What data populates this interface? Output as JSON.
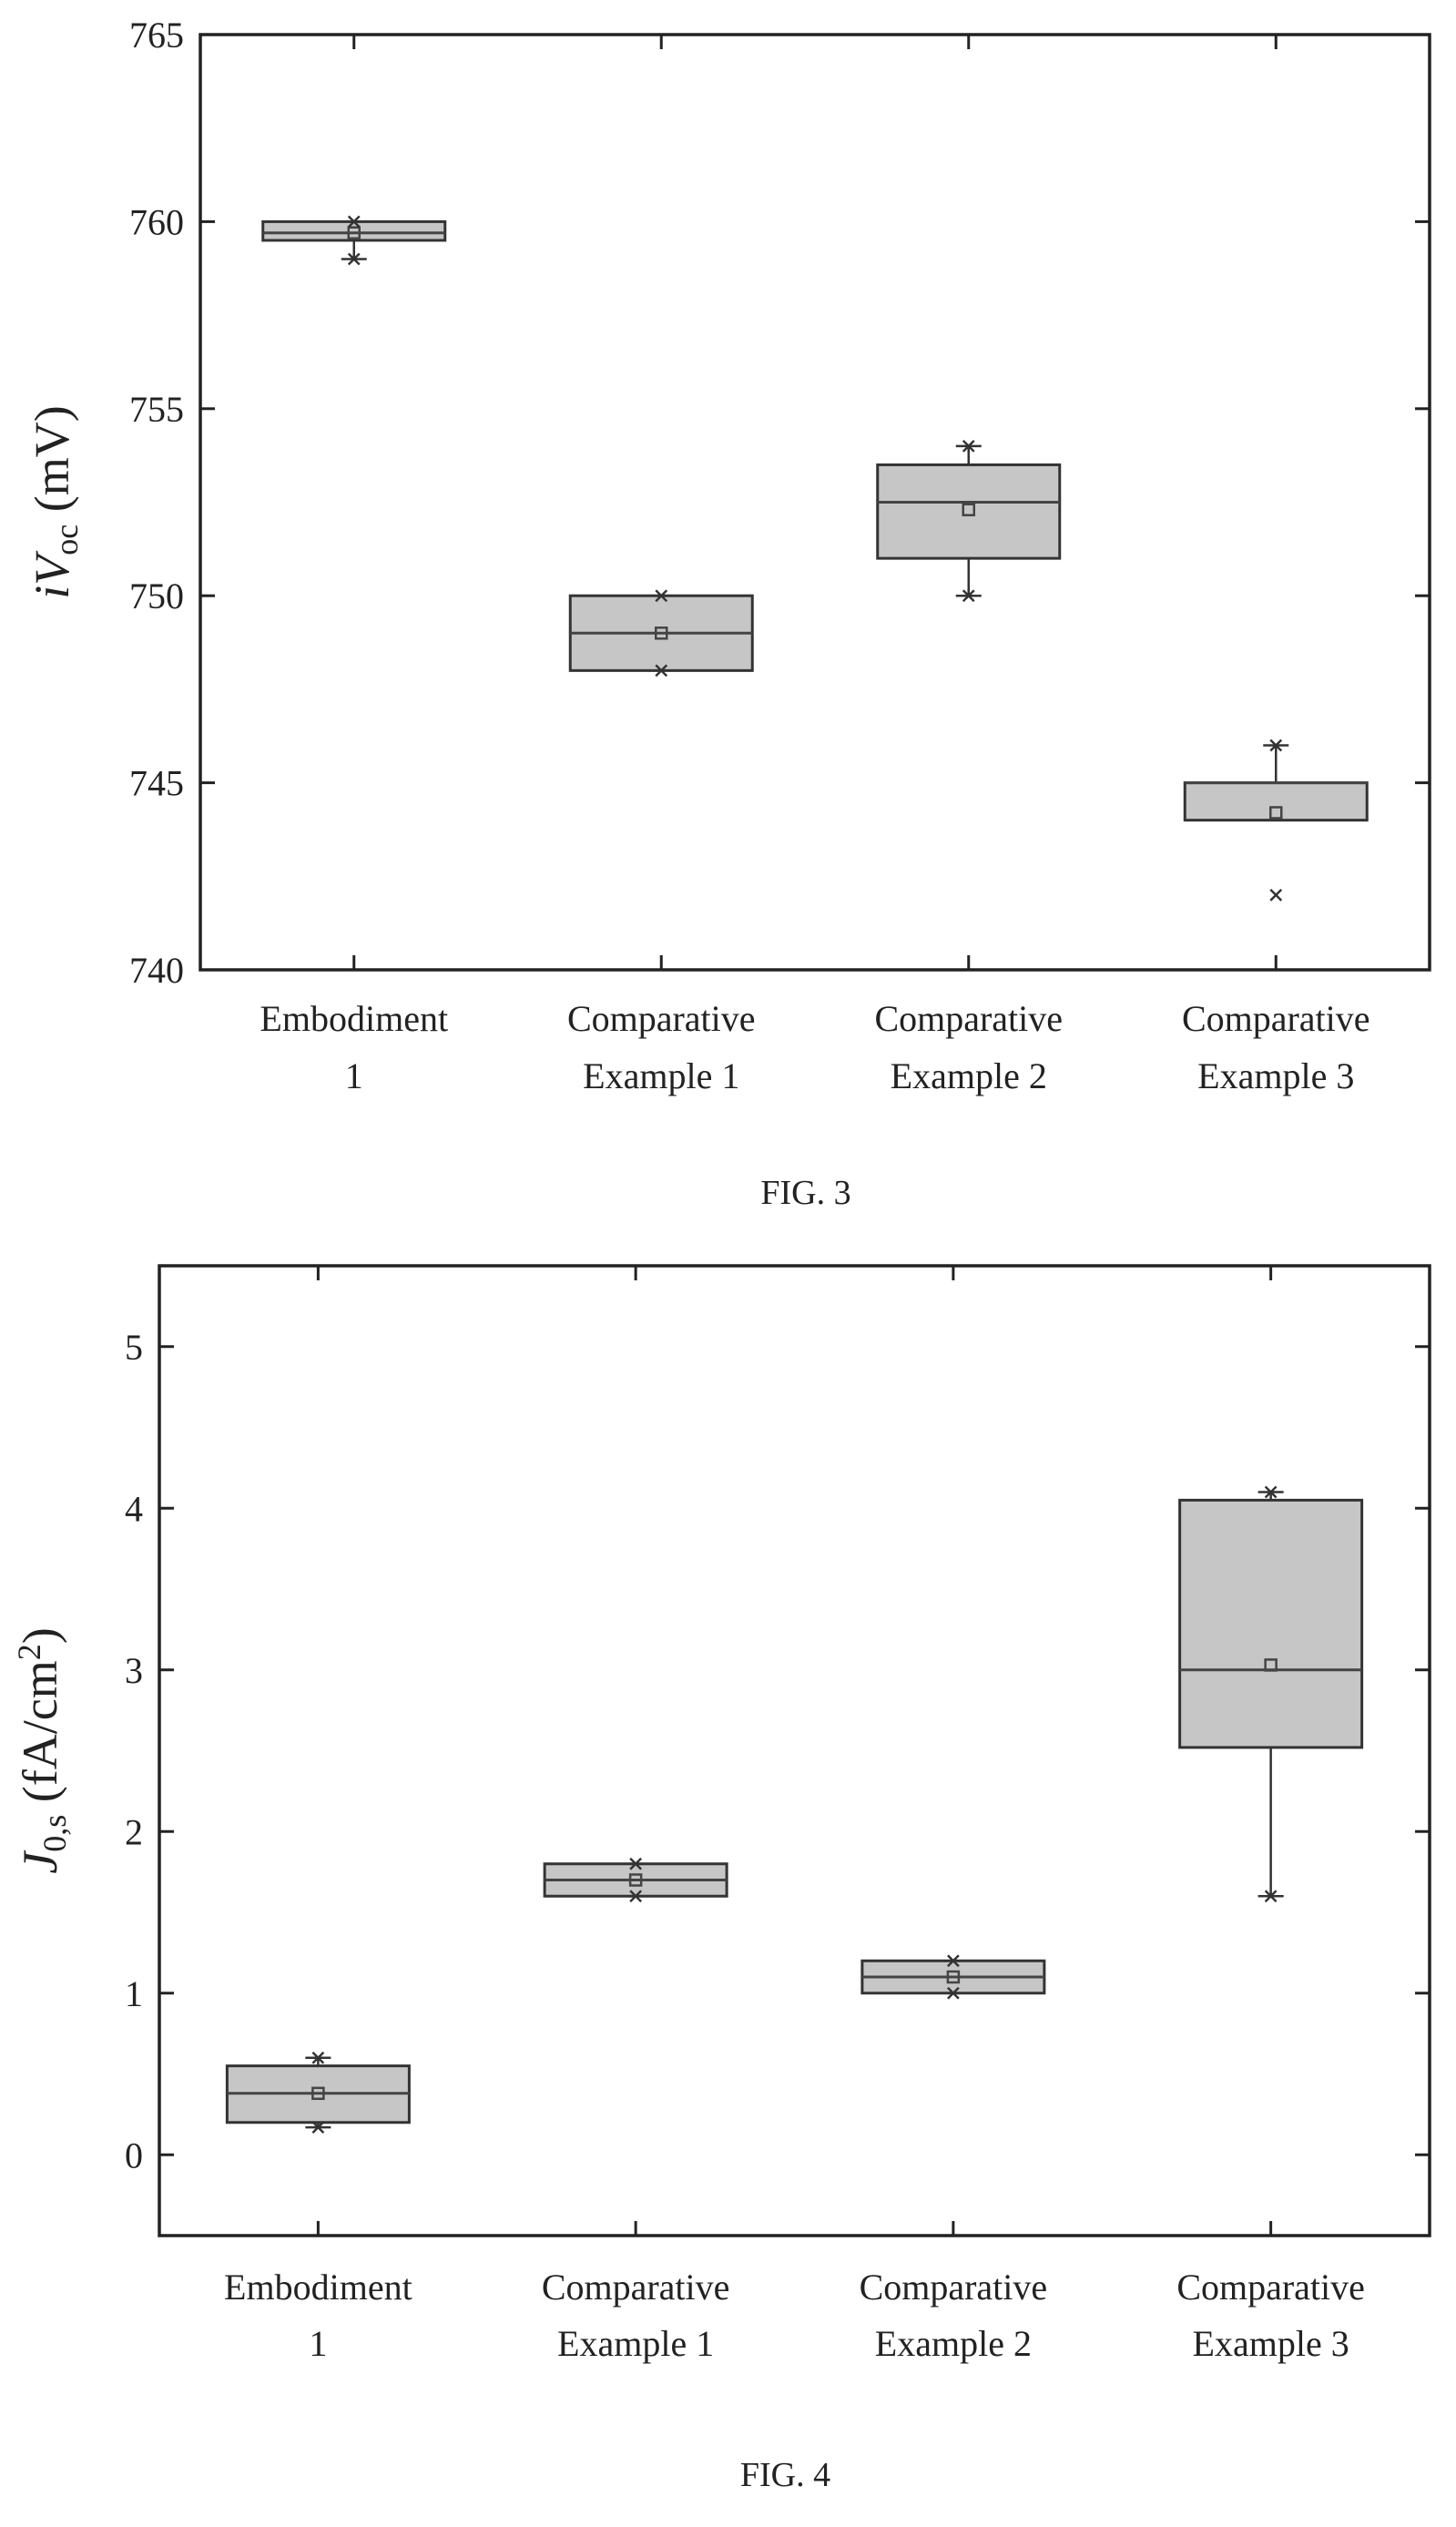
{
  "chart_data": [
    {
      "type": "box",
      "figure": "FIG. 3",
      "ylabel": "iVoc (mV)",
      "ylabel_parts": {
        "main": "iV",
        "sub": "oc",
        "unit": " (mV)"
      },
      "ylim": [
        740,
        765
      ],
      "yticks": [
        740,
        745,
        750,
        755,
        760,
        765
      ],
      "categories": [
        [
          "Embodiment",
          "1"
        ],
        [
          "Comparative",
          "Example 1"
        ],
        [
          "Comparative",
          "Example 2"
        ],
        [
          "Comparative",
          "Example 3"
        ]
      ],
      "boxes": [
        {
          "q1": 759.5,
          "median": 759.7,
          "q3": 760.0,
          "whisker_low": 759.0,
          "whisker_high": 760.0,
          "mean": 759.7,
          "extremes": [
            759.0,
            760.0
          ],
          "outliers": []
        },
        {
          "q1": 748.0,
          "median": 749.0,
          "q3": 750.0,
          "whisker_low": 748.0,
          "whisker_high": 750.0,
          "mean": 749.0,
          "extremes": [
            748.0,
            750.0
          ],
          "outliers": []
        },
        {
          "q1": 751.0,
          "median": 752.5,
          "q3": 753.5,
          "whisker_low": 750.0,
          "whisker_high": 754.0,
          "mean": 752.3,
          "extremes": [
            750.0,
            754.0
          ],
          "outliers": []
        },
        {
          "q1": 744.0,
          "median": 745.0,
          "q3": 745.0,
          "whisker_low": 744.0,
          "whisker_high": 746.0,
          "mean": 744.2,
          "extremes": [
            746.0
          ],
          "outliers": [
            742.0
          ]
        }
      ]
    },
    {
      "type": "box",
      "figure": "FIG. 4",
      "ylabel": "J0,s (fA/cm2)",
      "ylabel_parts": {
        "main": "J",
        "sub": "0,s",
        "unit": " (fA/cm",
        "sup": "2",
        "close": ")"
      },
      "ylim": [
        -0.5,
        5.5
      ],
      "yticks": [
        0,
        1,
        2,
        3,
        4,
        5
      ],
      "categories": [
        [
          "Embodiment",
          "1"
        ],
        [
          "Comparative",
          "Example 1"
        ],
        [
          "Comparative",
          "Example 2"
        ],
        [
          "Comparative",
          "Example 3"
        ]
      ],
      "boxes": [
        {
          "q1": 0.2,
          "median": 0.38,
          "q3": 0.55,
          "whisker_low": 0.17,
          "whisker_high": 0.6,
          "mean": 0.38,
          "extremes": [
            0.17,
            0.6
          ],
          "outliers": []
        },
        {
          "q1": 1.6,
          "median": 1.7,
          "q3": 1.8,
          "whisker_low": 1.6,
          "whisker_high": 1.8,
          "mean": 1.7,
          "extremes": [
            1.6,
            1.8
          ],
          "outliers": []
        },
        {
          "q1": 1.0,
          "median": 1.1,
          "q3": 1.2,
          "whisker_low": 1.0,
          "whisker_high": 1.2,
          "mean": 1.1,
          "extremes": [
            1.0,
            1.2
          ],
          "outliers": []
        },
        {
          "q1": 2.52,
          "median": 3.0,
          "q3": 4.05,
          "whisker_low": 1.6,
          "whisker_high": 4.1,
          "mean": 3.03,
          "extremes": [
            1.6,
            4.1
          ],
          "outliers": []
        }
      ]
    }
  ]
}
